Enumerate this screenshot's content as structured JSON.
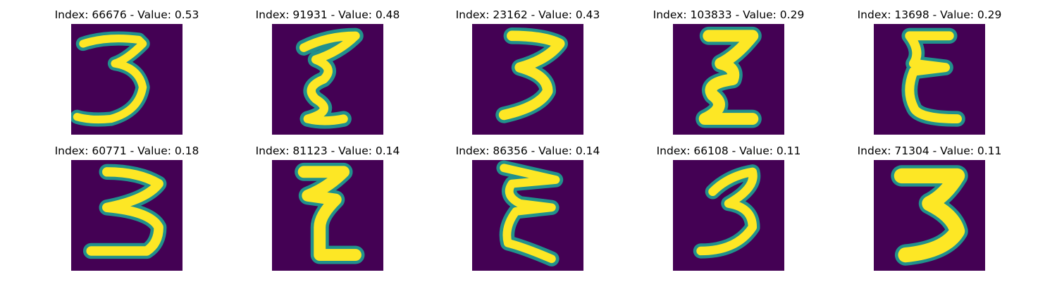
{
  "colors": {
    "background": "#440154",
    "mid": "#21918c",
    "edge": "#5ec962",
    "stroke": "#fde725"
  },
  "panels": [
    {
      "title": "Index: 66676 - Value: 0.53",
      "index": 66676,
      "value": 0.53,
      "icon": "handwritten-digit-3-image"
    },
    {
      "title": "Index: 91931 - Value: 0.48",
      "index": 91931,
      "value": 0.48,
      "icon": "handwritten-digit-3-image"
    },
    {
      "title": "Index: 23162 - Value: 0.43",
      "index": 23162,
      "value": 0.43,
      "icon": "handwritten-digit-3-image"
    },
    {
      "title": "Index: 103833 - Value: 0.29",
      "index": 103833,
      "value": 0.29,
      "icon": "handwritten-digit-3-image"
    },
    {
      "title": "Index: 13698 - Value: 0.29",
      "index": 13698,
      "value": 0.29,
      "icon": "handwritten-digit-3-image"
    },
    {
      "title": "Index: 60771 - Value: 0.18",
      "index": 60771,
      "value": 0.18,
      "icon": "handwritten-digit-3-image"
    },
    {
      "title": "Index: 81123 - Value: 0.14",
      "index": 81123,
      "value": 0.14,
      "icon": "handwritten-digit-3-image"
    },
    {
      "title": "Index: 86356 - Value: 0.14",
      "index": 86356,
      "value": 0.14,
      "icon": "handwritten-digit-3-image"
    },
    {
      "title": "Index: 66108 - Value: 0.11",
      "index": 66108,
      "value": 0.11,
      "icon": "handwritten-digit-3-image"
    },
    {
      "title": "Index: 71304 - Value: 0.11",
      "index": 71304,
      "value": 0.11,
      "icon": "handwritten-digit-3-image"
    }
  ]
}
